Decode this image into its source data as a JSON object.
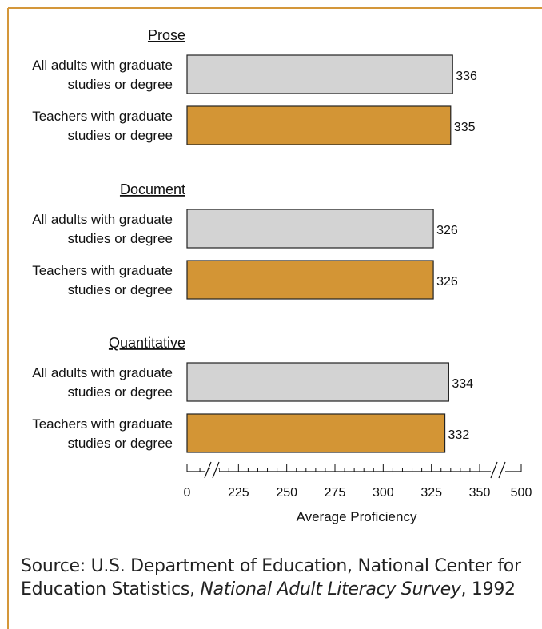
{
  "colors": {
    "frame": "#d4973a",
    "all_adults": "#d3d3d3",
    "teachers": "#d39535",
    "outline": "#222222"
  },
  "chart_data": {
    "type": "bar",
    "orientation": "horizontal",
    "xlabel": "Average Proficiency",
    "xlim": [
      0,
      500
    ],
    "axis_breaks": [
      "0-200",
      "350-500"
    ],
    "xticks": [
      {
        "value": 0,
        "label": "0"
      },
      {
        "value": 225,
        "label": "225"
      },
      {
        "value": 250,
        "label": "250"
      },
      {
        "value": 275,
        "label": "275"
      },
      {
        "value": 300,
        "label": "300"
      },
      {
        "value": 325,
        "label": "325"
      },
      {
        "value": 350,
        "label": "350"
      },
      {
        "value": 500,
        "label": "500"
      }
    ],
    "minor_tick_step": 5,
    "groups": [
      {
        "title": "Prose",
        "bars": [
          {
            "label1": "All adults with graduate",
            "label2": "studies or degree",
            "value": 336,
            "series": "all"
          },
          {
            "label1": "Teachers with graduate",
            "label2": "studies or degree",
            "value": 335,
            "series": "teachers"
          }
        ]
      },
      {
        "title": "Document",
        "bars": [
          {
            "label1": "All adults with graduate",
            "label2": "studies or degree",
            "value": 326,
            "series": "all"
          },
          {
            "label1": "Teachers with graduate",
            "label2": "studies or degree",
            "value": 326,
            "series": "teachers"
          }
        ]
      },
      {
        "title": "Quantitative",
        "bars": [
          {
            "label1": "All adults with graduate",
            "label2": "studies or degree",
            "value": 334,
            "series": "all"
          },
          {
            "label1": "Teachers with graduate",
            "label2": "studies or degree",
            "value": 332,
            "series": "teachers"
          }
        ]
      }
    ]
  },
  "source": {
    "prefix": "Source: U.S. Department of Education, National Center for Education Statistics, ",
    "title": "National Adult Literacy Survey",
    "suffix": ", 1992"
  }
}
